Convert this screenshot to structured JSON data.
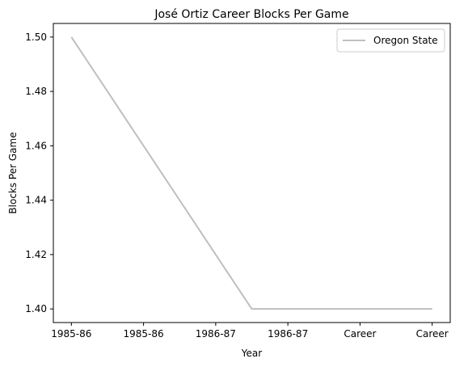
{
  "chart_data": {
    "type": "line",
    "title": "José Ortiz  Career Blocks Per Game",
    "xlabel": "Year",
    "ylabel": "Blocks Per Game",
    "categories": [
      "1985-86",
      "1985-86",
      "1986-87",
      "1986-87",
      "Career",
      "Career"
    ],
    "x": [
      0,
      1.5,
      3
    ],
    "series": [
      {
        "name": "Oregon State",
        "values": [
          1.5,
          1.4,
          1.4
        ],
        "color": "#bfbfbf"
      }
    ],
    "yticks": [
      "1.40",
      "1.42",
      "1.44",
      "1.46",
      "1.48",
      "1.50"
    ],
    "ylim": [
      1.395,
      1.505
    ],
    "xlim": [
      -0.15,
      3.15
    ],
    "grid": false,
    "legend": "top-right"
  }
}
